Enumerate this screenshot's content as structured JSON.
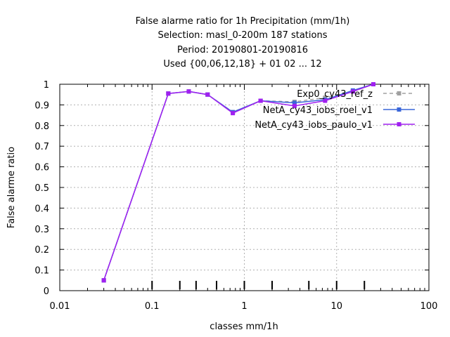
{
  "chart_data": {
    "type": "line",
    "title_lines": [
      "False alarme ratio  for 1h Precipitation (mm/1h)",
      "Selection: masl_0-200m    187 stations",
      "Period: 20190801-20190816",
      "Used {00,06,12,18} + 01 02 ... 12"
    ],
    "xlabel": "classes mm/1h",
    "ylabel": "False alarme ratio",
    "xscale": "log",
    "xlim": [
      0.01,
      100
    ],
    "ylim": [
      0,
      1
    ],
    "xticks": [
      0.01,
      0.1,
      1,
      10,
      100
    ],
    "xtick_labels": [
      "0.01",
      "0.1",
      "1",
      "10",
      "100"
    ],
    "yticks": [
      0,
      0.1,
      0.2,
      0.3,
      0.4,
      0.5,
      0.6,
      0.7,
      0.8,
      0.9,
      1
    ],
    "ytick_labels": [
      "0",
      "0.1",
      "0.2",
      "0.3",
      "0.4",
      "0.5",
      "0.6",
      "0.7",
      "0.8",
      "0.9",
      "1"
    ],
    "class_markers": [
      0.1,
      0.2,
      0.3,
      0.5,
      1,
      2,
      5,
      10,
      20
    ],
    "grid": true,
    "legend_position": "top-right",
    "series": [
      {
        "name": "Exp0_cy43_ref_z",
        "color": "#a0a0a0",
        "dashed": true,
        "x": [
          0.03,
          0.15,
          0.25,
          0.4,
          0.75,
          1.5,
          3.5,
          7.5,
          15,
          25
        ],
        "y": [
          0.05,
          0.955,
          0.965,
          0.95,
          0.865,
          0.92,
          0.915,
          0.935,
          0.965,
          1.0
        ]
      },
      {
        "name": "NetA_cy43_iobs_roel_v1",
        "color": "#3a66d9",
        "dashed": false,
        "x": [
          0.03,
          0.15,
          0.25,
          0.4,
          0.75,
          1.5,
          3.5,
          7.5,
          15,
          25
        ],
        "y": [
          0.05,
          0.955,
          0.965,
          0.95,
          0.865,
          0.92,
          0.91,
          0.925,
          0.97,
          1.0
        ]
      },
      {
        "name": "NetA_cy43_iobs_paulo_v1",
        "color": "#a020f0",
        "dashed": false,
        "x": [
          0.03,
          0.15,
          0.25,
          0.4,
          0.75,
          1.5,
          3.5,
          7.5,
          15,
          25
        ],
        "y": [
          0.05,
          0.955,
          0.965,
          0.95,
          0.86,
          0.92,
          0.895,
          0.92,
          0.965,
          1.0
        ]
      }
    ]
  }
}
